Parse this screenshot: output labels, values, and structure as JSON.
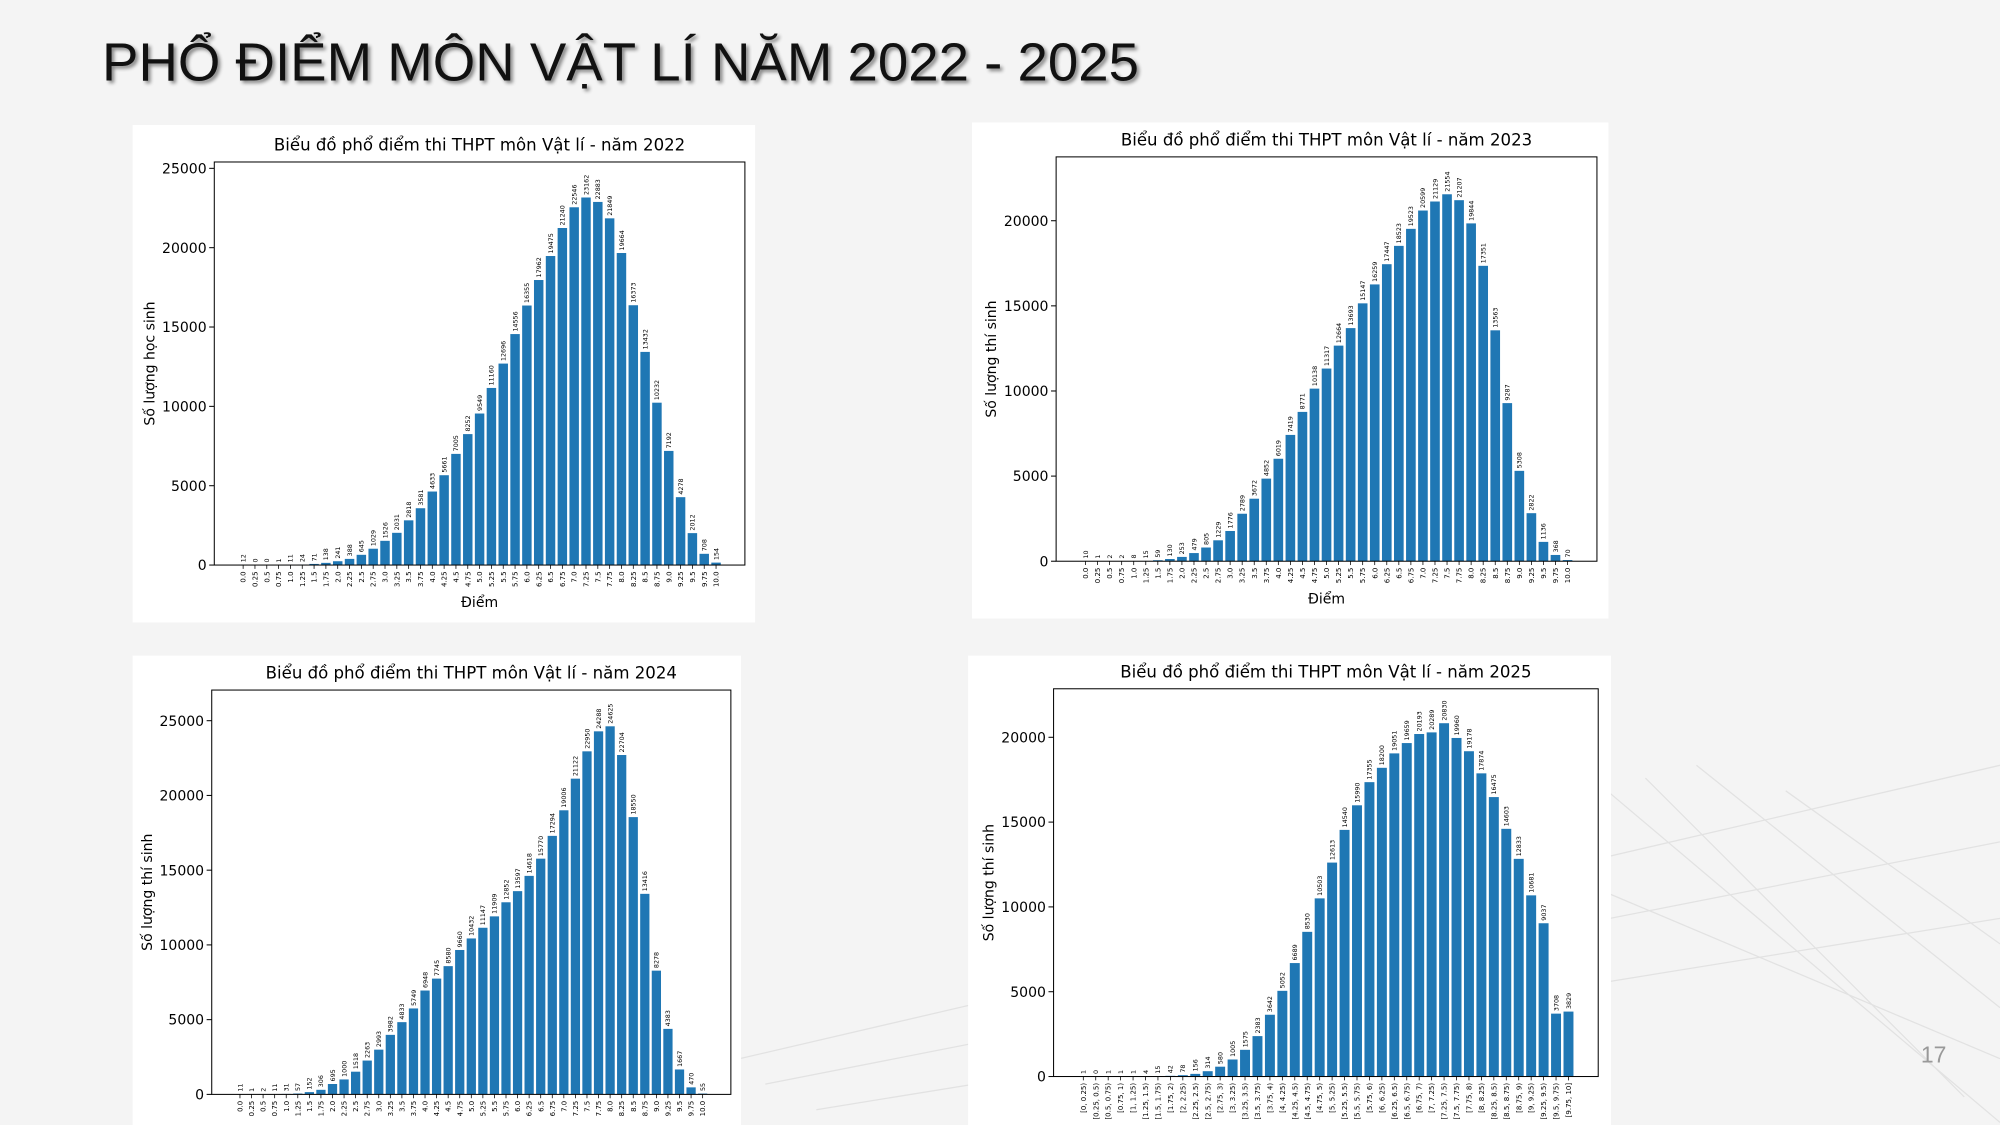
{
  "title": "PHỔ ĐIỂM MÔN VẬT LÍ NĂM 2022 - 2025",
  "page_number": "17",
  "chart_data": [
    {
      "type": "bar",
      "title": "Biểu đồ phổ điểm thi THPT môn Vật lí - năm 2022",
      "x_label": "Điểm",
      "y_label": "Số lượng học sinh",
      "color": "#1f77b4",
      "categories": [
        "0.0",
        "0.25",
        "0.5",
        "0.75",
        "1.0",
        "1.25",
        "1.5",
        "1.75",
        "2.0",
        "2.25",
        "2.5",
        "2.75",
        "3.0",
        "3.25",
        "3.5",
        "3.75",
        "4.0",
        "4.25",
        "4.5",
        "4.75",
        "5.0",
        "5.25",
        "5.5",
        "5.75",
        "6.0",
        "6.25",
        "6.5",
        "6.75",
        "7.0",
        "7.25",
        "7.5",
        "7.75",
        "8.0",
        "8.25",
        "8.5",
        "8.75",
        "9.0",
        "9.25",
        "9.5",
        "9.75",
        "10.0"
      ],
      "values": [
        12,
        0,
        0,
        1,
        11,
        24,
        71,
        138,
        241,
        388,
        645,
        1029,
        1526,
        2031,
        2818,
        3581,
        4633,
        5661,
        7005,
        8252,
        9549,
        11160,
        12696,
        14556,
        16355,
        17962,
        19475,
        21240,
        22546,
        23162,
        22883,
        21849,
        19664,
        16373,
        13432,
        10232,
        7192,
        4278,
        2012,
        708,
        154
      ],
      "ylim": [
        0,
        25400
      ],
      "yticks": [
        0,
        5000,
        10000,
        15000,
        20000,
        25000
      ]
    },
    {
      "type": "bar",
      "title": "Biểu đồ phổ điểm thi THPT môn Vật lí - năm 2023",
      "x_label": "Điểm",
      "y_label": "Số lượng thí sinh",
      "color": "#1f77b4",
      "categories": [
        "0.0",
        "0.25",
        "0.5",
        "0.75",
        "1.0",
        "1.25",
        "1.5",
        "1.75",
        "2.0",
        "2.25",
        "2.5",
        "2.75",
        "3.0",
        "3.25",
        "3.5",
        "3.75",
        "4.0",
        "4.25",
        "4.5",
        "4.75",
        "5.0",
        "5.25",
        "5.5",
        "5.75",
        "6.0",
        "6.25",
        "6.5",
        "6.75",
        "7.0",
        "7.25",
        "7.5",
        "7.75",
        "8.0",
        "8.25",
        "8.5",
        "8.75",
        "9.0",
        "9.25",
        "9.5",
        "9.75",
        "10.0"
      ],
      "values": [
        10,
        1,
        2,
        2,
        8,
        15,
        59,
        130,
        253,
        479,
        805,
        1229,
        1776,
        2789,
        3672,
        4852,
        6019,
        7419,
        8771,
        10138,
        11317,
        12664,
        13693,
        15147,
        16259,
        17447,
        18523,
        19523,
        20599,
        21129,
        21554,
        21207,
        19844,
        17351,
        13563,
        9287,
        5308,
        2822,
        1136,
        368,
        70
      ],
      "ylim": [
        0,
        23750
      ],
      "yticks": [
        0,
        5000,
        10000,
        15000,
        20000
      ]
    },
    {
      "type": "bar",
      "title": "Biểu đồ phổ điểm thi THPT môn Vật lí - năm 2024",
      "y_label": "Số lượng thí sinh",
      "color": "#1f77b4",
      "categories": [
        "0.0",
        "0.25",
        "0.5",
        "0.75",
        "1.0",
        "1.25",
        "1.5",
        "1.75",
        "2.0",
        "2.25",
        "2.5",
        "2.75",
        "3.0",
        "3.25",
        "3.5",
        "3.75",
        "4.0",
        "4.25",
        "4.5",
        "4.75",
        "5.0",
        "5.25",
        "5.5",
        "5.75",
        "6.0",
        "6.25",
        "6.5",
        "6.75",
        "7.0",
        "7.25",
        "7.5",
        "7.75",
        "8.0",
        "8.25",
        "8.5",
        "8.75",
        "9.0",
        "9.25",
        "9.5",
        "9.75",
        "10.0"
      ],
      "values": [
        11,
        1,
        2,
        11,
        31,
        57,
        152,
        306,
        695,
        1000,
        1518,
        2263,
        2993,
        3982,
        4833,
        5749,
        6948,
        7745,
        8580,
        9660,
        10432,
        11147,
        11909,
        12852,
        13597,
        14618,
        15770,
        17294,
        19006,
        21122,
        22950,
        24288,
        24625,
        22704,
        18550,
        13416,
        8278,
        4383,
        1667,
        470,
        55
      ],
      "ylim": [
        0,
        27050
      ],
      "yticks": [
        0,
        5000,
        10000,
        15000,
        20000,
        25000
      ]
    },
    {
      "type": "bar",
      "title": "Biểu đồ phổ điểm thi THPT môn Vật lí - năm 2025",
      "y_label": "Số lượng thí sinh",
      "color": "#1f77b4",
      "categories": [
        "[0, 0.25)",
        "[0.25, 0.5)",
        "[0.5, 0.75)",
        "[0.75, 1)",
        "[1, 1.25)",
        "[1.25, 1.5)",
        "[1.5, 1.75)",
        "[1.75, 2)",
        "[2, 2.25)",
        "[2.25, 2.5)",
        "[2.5, 2.75)",
        "[2.75, 3)",
        "[3, 3.25)",
        "[3.25, 3.5)",
        "[3.5, 3.75)",
        "[3.75, 4)",
        "[4, 4.25)",
        "[4.25, 4.5)",
        "[4.5, 4.75)",
        "[4.75, 5)",
        "[5, 5.25)",
        "[5.25, 5.5)",
        "[5.5, 5.75)",
        "[5.75, 6)",
        "[6, 6.25)",
        "[6.25, 6.5)",
        "[6.5, 6.75)",
        "[6.75, 7)",
        "[7, 7.25)",
        "[7.25, 7.5)",
        "[7.5, 7.75)",
        "[7.75, 8)",
        "[8, 8.25)",
        "[8.25, 8.5)",
        "[8.5, 8.75)",
        "[8.75, 9)",
        "[9, 9.25)",
        "[9.25, 9.5)",
        "[9.5, 9.75)",
        "[9.75, 10]"
      ],
      "values": [
        1,
        0,
        1,
        1,
        1,
        4,
        15,
        42,
        78,
        156,
        314,
        580,
        1005,
        1575,
        2383,
        3642,
        5052,
        6689,
        8530,
        10503,
        12613,
        14540,
        15990,
        17355,
        18200,
        19051,
        19659,
        20193,
        20289,
        20830,
        19960,
        19178,
        17874,
        16475,
        14603,
        12833,
        10681,
        9037,
        3708,
        3829
      ],
      "ylim": [
        0,
        22860
      ],
      "yticks": [
        0,
        5000,
        10000,
        15000,
        20000
      ]
    }
  ]
}
